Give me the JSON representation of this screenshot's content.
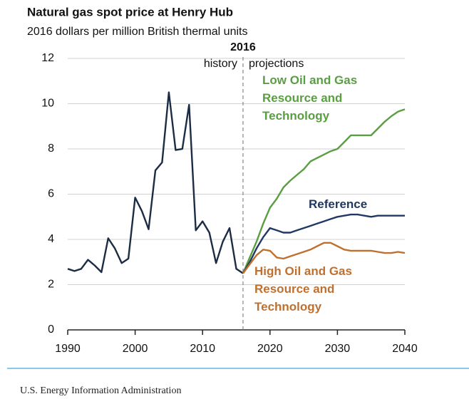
{
  "chart_data": {
    "type": "line",
    "title": "Natural gas spot price at Henry Hub",
    "subtitle": "2016 dollars per million British thermal units",
    "divider": 2016,
    "annotations": [
      "history",
      "projections"
    ],
    "source": "U.S. Energy Information Administration",
    "xlim": [
      1990,
      2040
    ],
    "xticks": [
      1990,
      2000,
      2010,
      2020,
      2030,
      2040
    ],
    "ylim": [
      0,
      12
    ],
    "yticks": [
      0,
      2,
      4,
      6,
      8,
      10,
      12
    ],
    "grid": true,
    "series": [
      {
        "color": "#1c2c44",
        "x": [
          1990,
          1991,
          1992,
          1993,
          1994,
          1995,
          1996,
          1997,
          1998,
          1999,
          2000,
          2001,
          2002,
          2003,
          2004,
          2005,
          2006,
          2007,
          2008,
          2009,
          2010,
          2011,
          2012,
          2013,
          2014,
          2015,
          2016
        ],
        "values": [
          2.7,
          2.6,
          2.7,
          3.1,
          2.85,
          2.55,
          4.05,
          3.6,
          2.95,
          3.15,
          5.85,
          5.25,
          4.45,
          7.05,
          7.4,
          10.5,
          7.95,
          8.0,
          9.95,
          4.4,
          4.8,
          4.3,
          2.95,
          3.9,
          4.5,
          2.7,
          2.5
        ]
      },
      {
        "name": "Low Oil and Gas Resource and Technology",
        "color": "#5a9e42",
        "x": [
          2016,
          2017,
          2018,
          2019,
          2020,
          2021,
          2022,
          2023,
          2024,
          2025,
          2026,
          2027,
          2028,
          2029,
          2030,
          2031,
          2032,
          2033,
          2034,
          2035,
          2036,
          2037,
          2038,
          2039,
          2040
        ],
        "values": [
          2.5,
          3.2,
          3.9,
          4.7,
          5.4,
          5.8,
          6.3,
          6.6,
          6.85,
          7.1,
          7.45,
          7.6,
          7.75,
          7.9,
          8.0,
          8.3,
          8.6,
          8.6,
          8.6,
          8.6,
          8.9,
          9.2,
          9.45,
          9.65,
          9.75
        ]
      },
      {
        "name": "Reference",
        "color": "#1f3864",
        "x": [
          2016,
          2017,
          2018,
          2019,
          2020,
          2021,
          2022,
          2023,
          2024,
          2025,
          2026,
          2027,
          2028,
          2029,
          2030,
          2031,
          2032,
          2033,
          2034,
          2035,
          2036,
          2037,
          2038,
          2039,
          2040
        ],
        "values": [
          2.5,
          3.0,
          3.6,
          4.1,
          4.5,
          4.4,
          4.3,
          4.3,
          4.4,
          4.5,
          4.6,
          4.7,
          4.8,
          4.9,
          5.0,
          5.05,
          5.1,
          5.1,
          5.05,
          5.0,
          5.05,
          5.05,
          5.05,
          5.05,
          5.05
        ]
      },
      {
        "name": "High Oil and Gas Resource and Technology",
        "color": "#c0702e",
        "x": [
          2016,
          2017,
          2018,
          2019,
          2020,
          2021,
          2022,
          2023,
          2024,
          2025,
          2026,
          2027,
          2028,
          2029,
          2030,
          2031,
          2032,
          2033,
          2034,
          2035,
          2036,
          2037,
          2038,
          2039,
          2040
        ],
        "values": [
          2.5,
          2.9,
          3.3,
          3.55,
          3.5,
          3.2,
          3.15,
          3.25,
          3.35,
          3.45,
          3.55,
          3.7,
          3.85,
          3.85,
          3.7,
          3.55,
          3.5,
          3.5,
          3.5,
          3.5,
          3.45,
          3.4,
          3.4,
          3.45,
          3.4
        ]
      }
    ]
  }
}
